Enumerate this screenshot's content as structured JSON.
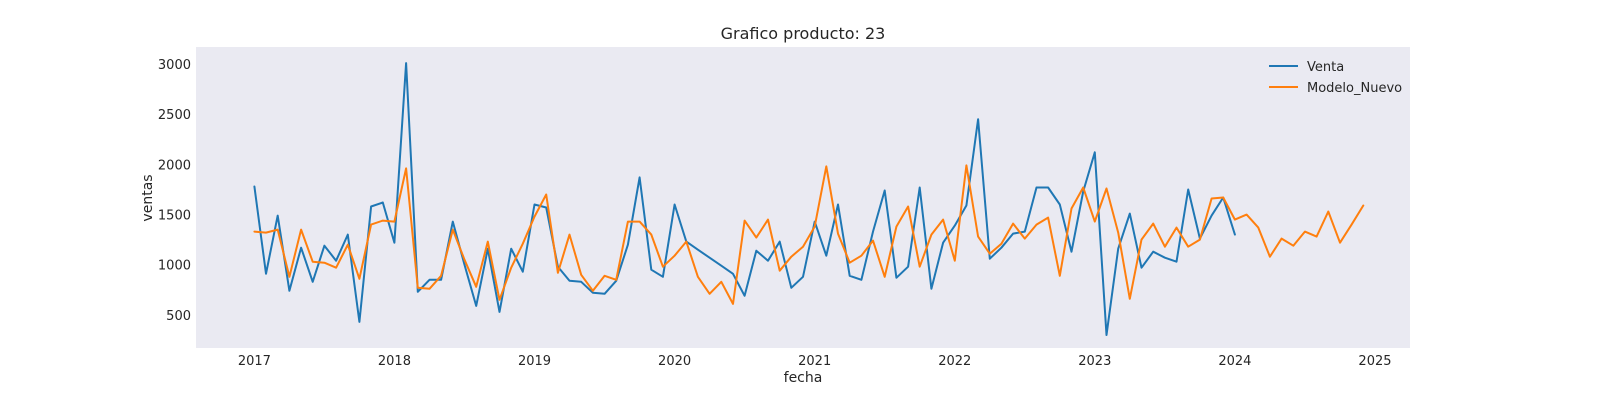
{
  "chart_data": {
    "type": "line",
    "title": "Grafico producto: 23",
    "xlabel": "fecha",
    "ylabel": "ventas",
    "x_axis_type": "date",
    "xlim": [
      "2016-08",
      "2025-04"
    ],
    "ylim": [
      170,
      3170
    ],
    "xticks": [
      "2017",
      "2018",
      "2019",
      "2020",
      "2021",
      "2022",
      "2023",
      "2024",
      "2025"
    ],
    "yticks": [
      500,
      1000,
      1500,
      2000,
      2500,
      3000
    ],
    "grid": false,
    "background": "#eaeaf2",
    "legend_position": "top-right",
    "series": [
      {
        "name": "Venta",
        "color": "#1f77b4",
        "start": "2017-01",
        "values": [
          1780,
          910,
          1490,
          740,
          1170,
          830,
          1190,
          1040,
          1300,
          430,
          1580,
          1620,
          1220,
          3010,
          730,
          850,
          850,
          1430,
          1000,
          590,
          1160,
          530,
          1160,
          930,
          1600,
          1570,
          980,
          840,
          830,
          720,
          710,
          840,
          1200,
          1870,
          950,
          880,
          1600,
          1230,
          1150,
          1070,
          990,
          910,
          690,
          1140,
          1040,
          1230,
          770,
          880,
          1430,
          1090,
          1600,
          890,
          850,
          1330,
          1740,
          870,
          980,
          1770,
          760,
          1220,
          1390,
          1590,
          2450,
          1060,
          1170,
          1310,
          1330,
          1770,
          1770,
          1600,
          1130,
          1730,
          2120,
          300,
          1160,
          1510,
          970,
          1130,
          1070,
          1030,
          1750,
          1260,
          1490,
          1670,
          1300
        ]
      },
      {
        "name": "Modelo_Nuevo",
        "color": "#ff7f0e",
        "start": "2017-01",
        "values": [
          1330,
          1320,
          1350,
          880,
          1350,
          1030,
          1020,
          970,
          1200,
          860,
          1400,
          1440,
          1430,
          1960,
          770,
          760,
          890,
          1350,
          1050,
          780,
          1230,
          650,
          970,
          1210,
          1480,
          1700,
          920,
          1300,
          900,
          740,
          890,
          850,
          1430,
          1430,
          1300,
          980,
          1090,
          1230,
          880,
          710,
          830,
          610,
          1440,
          1270,
          1450,
          940,
          1080,
          1180,
          1380,
          1980,
          1310,
          1020,
          1090,
          1240,
          880,
          1380,
          1580,
          980,
          1300,
          1450,
          1040,
          1990,
          1280,
          1110,
          1210,
          1410,
          1260,
          1400,
          1470,
          890,
          1560,
          1770,
          1430,
          1760,
          1320,
          660,
          1250,
          1410,
          1180,
          1370,
          1180,
          1250,
          1660,
          1670,
          1450,
          1500,
          1370,
          1080,
          1260,
          1190,
          1330,
          1280,
          1530,
          1220,
          1400,
          1590
        ]
      }
    ]
  }
}
